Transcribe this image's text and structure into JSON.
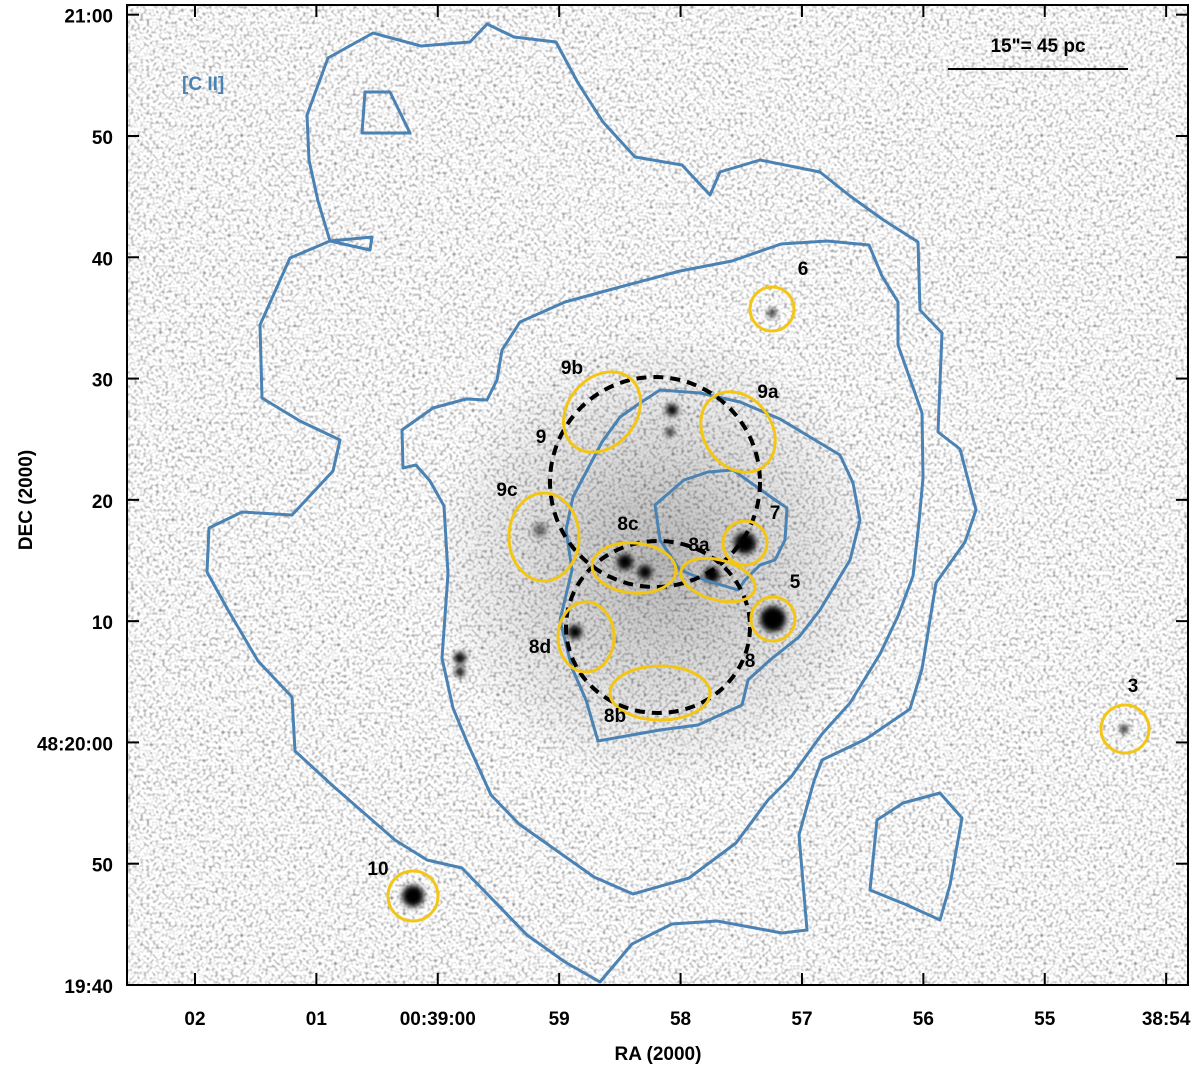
{
  "chart_data": {
    "type": "image",
    "x_label": "RA (2000)",
    "y_label": "DEC (2000)",
    "xlim": [
      62.56,
      53.82
    ],
    "xticks": [
      {
        "value": 62,
        "label": "02"
      },
      {
        "value": 61,
        "label": "01"
      },
      {
        "value": 60,
        "label": "00:39:00"
      },
      59,
      58,
      57,
      56,
      55,
      {
        "value": 54,
        "label": "38:54"
      }
    ],
    "ylim": [
      40,
      120.8
    ],
    "yticks": [
      {
        "value": 40,
        "label": "19:40"
      },
      50,
      {
        "value": 60,
        "label": "48:20:00"
      },
      {
        "value": 70,
        "label": "10"
      },
      {
        "value": 80,
        "label": "20"
      },
      {
        "value": 90,
        "label": "30"
      },
      {
        "value": 100,
        "label": "40"
      },
      {
        "value": 110,
        "label": "50"
      },
      {
        "value": 120,
        "label": "21:00"
      }
    ],
    "contour_label": "[C II]",
    "scale_bar": "15\"= 45 pc",
    "regions": [
      "6",
      "9b",
      "9a",
      "9",
      "9c",
      "8c",
      "8a",
      "7",
      "5",
      "8d",
      "8",
      "8b",
      "3",
      "10"
    ]
  }
}
